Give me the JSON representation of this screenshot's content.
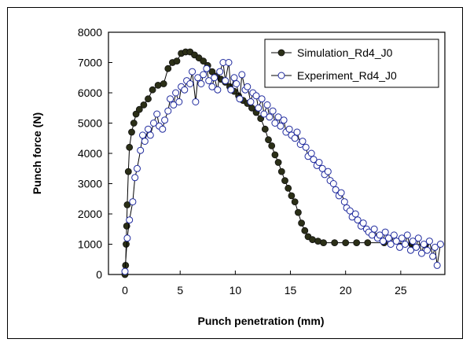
{
  "chart_data": {
    "type": "scatter",
    "title": "",
    "xlabel": "Punch penetration (mm)",
    "ylabel": "Punch force (N)",
    "xlim": [
      -1.5,
      29
    ],
    "ylim": [
      0,
      8000
    ],
    "xticks": [
      0,
      5,
      10,
      15,
      20,
      25
    ],
    "yticks": [
      0,
      1000,
      2000,
      3000,
      4000,
      5000,
      6000,
      7000,
      8000
    ],
    "grid": false,
    "legend_position": "top-right",
    "series": [
      {
        "name": "Simulation_Rd4_J0",
        "marker": "filled-circle",
        "color": "#2b2f17",
        "line": true,
        "points": [
          [
            0.0,
            0
          ],
          [
            0.05,
            300
          ],
          [
            0.1,
            1000
          ],
          [
            0.15,
            1600
          ],
          [
            0.2,
            2300
          ],
          [
            0.3,
            3400
          ],
          [
            0.4,
            4200
          ],
          [
            0.6,
            4700
          ],
          [
            0.8,
            5000
          ],
          [
            1.0,
            5300
          ],
          [
            1.3,
            5450
          ],
          [
            1.7,
            5600
          ],
          [
            2.1,
            5800
          ],
          [
            2.5,
            6100
          ],
          [
            3.0,
            6250
          ],
          [
            3.5,
            6300
          ],
          [
            3.9,
            6800
          ],
          [
            4.3,
            7000
          ],
          [
            4.7,
            7050
          ],
          [
            5.1,
            7300
          ],
          [
            5.5,
            7350
          ],
          [
            5.9,
            7350
          ],
          [
            6.3,
            7250
          ],
          [
            6.7,
            7150
          ],
          [
            7.1,
            7050
          ],
          [
            7.5,
            6900
          ],
          [
            7.9,
            6700
          ],
          [
            8.3,
            6550
          ],
          [
            8.7,
            6450
          ],
          [
            9.1,
            6350
          ],
          [
            9.5,
            6200
          ],
          [
            9.9,
            6050
          ],
          [
            10.3,
            5900
          ],
          [
            10.7,
            5750
          ],
          [
            11.1,
            5650
          ],
          [
            11.5,
            5500
          ],
          [
            11.9,
            5350
          ],
          [
            12.3,
            5150
          ],
          [
            12.7,
            4800
          ],
          [
            13.0,
            4450
          ],
          [
            13.3,
            4250
          ],
          [
            13.6,
            3950
          ],
          [
            13.9,
            3700
          ],
          [
            14.2,
            3400
          ],
          [
            14.5,
            3100
          ],
          [
            14.8,
            2850
          ],
          [
            15.1,
            2600
          ],
          [
            15.4,
            2400
          ],
          [
            15.7,
            2050
          ],
          [
            16.0,
            1700
          ],
          [
            16.3,
            1450
          ],
          [
            16.6,
            1250
          ],
          [
            17.0,
            1150
          ],
          [
            17.5,
            1100
          ],
          [
            18.0,
            1050
          ],
          [
            19.0,
            1050
          ],
          [
            20.0,
            1050
          ],
          [
            21.0,
            1050
          ],
          [
            22.0,
            1050
          ],
          [
            23.5,
            1050
          ],
          [
            26.0,
            1000
          ],
          [
            27.2,
            980
          ]
        ]
      },
      {
        "name": "Experiment_Rd4_J0",
        "marker": "open-circle",
        "color": "#1f2a9e",
        "line": true,
        "points": [
          [
            0.0,
            100
          ],
          [
            0.2,
            1200
          ],
          [
            0.4,
            1800
          ],
          [
            0.7,
            2400
          ],
          [
            0.9,
            3200
          ],
          [
            1.1,
            3500
          ],
          [
            1.4,
            4100
          ],
          [
            1.6,
            4600
          ],
          [
            1.8,
            4400
          ],
          [
            2.1,
            4800
          ],
          [
            2.3,
            4600
          ],
          [
            2.6,
            5000
          ],
          [
            2.9,
            5300
          ],
          [
            3.1,
            4900
          ],
          [
            3.4,
            4800
          ],
          [
            3.6,
            5100
          ],
          [
            3.9,
            5400
          ],
          [
            4.1,
            5800
          ],
          [
            4.4,
            5600
          ],
          [
            4.6,
            6000
          ],
          [
            4.9,
            5700
          ],
          [
            5.1,
            6200
          ],
          [
            5.4,
            6100
          ],
          [
            5.6,
            6400
          ],
          [
            5.9,
            6300
          ],
          [
            6.1,
            6700
          ],
          [
            6.4,
            5700
          ],
          [
            6.6,
            6500
          ],
          [
            6.9,
            6300
          ],
          [
            7.1,
            6600
          ],
          [
            7.4,
            6800
          ],
          [
            7.6,
            6400
          ],
          [
            7.9,
            6200
          ],
          [
            8.1,
            6500
          ],
          [
            8.4,
            6100
          ],
          [
            8.6,
            6700
          ],
          [
            8.9,
            7000
          ],
          [
            9.1,
            6400
          ],
          [
            9.4,
            7000
          ],
          [
            9.6,
            6100
          ],
          [
            9.9,
            6500
          ],
          [
            10.1,
            6300
          ],
          [
            10.4,
            5800
          ],
          [
            10.6,
            6600
          ],
          [
            10.9,
            6100
          ],
          [
            11.1,
            6200
          ],
          [
            11.4,
            5700
          ],
          [
            11.6,
            6000
          ],
          [
            11.9,
            5900
          ],
          [
            12.1,
            5500
          ],
          [
            12.4,
            5800
          ],
          [
            12.6,
            5300
          ],
          [
            12.9,
            5600
          ],
          [
            13.1,
            5200
          ],
          [
            13.4,
            5400
          ],
          [
            13.6,
            5000
          ],
          [
            13.9,
            5200
          ],
          [
            14.1,
            4900
          ],
          [
            14.4,
            5100
          ],
          [
            14.6,
            4700
          ],
          [
            14.9,
            4800
          ],
          [
            15.1,
            4600
          ],
          [
            15.4,
            4500
          ],
          [
            15.6,
            4700
          ],
          [
            15.9,
            4300
          ],
          [
            16.1,
            4400
          ],
          [
            16.4,
            4200
          ],
          [
            16.6,
            3900
          ],
          [
            16.9,
            4000
          ],
          [
            17.1,
            3800
          ],
          [
            17.4,
            3600
          ],
          [
            17.6,
            3700
          ],
          [
            17.9,
            3500
          ],
          [
            18.1,
            3300
          ],
          [
            18.4,
            3400
          ],
          [
            18.6,
            3100
          ],
          [
            18.9,
            3000
          ],
          [
            19.1,
            2800
          ],
          [
            19.4,
            2600
          ],
          [
            19.6,
            2700
          ],
          [
            19.9,
            2400
          ],
          [
            20.1,
            2200
          ],
          [
            20.4,
            2100
          ],
          [
            20.6,
            1900
          ],
          [
            20.9,
            2000
          ],
          [
            21.1,
            1800
          ],
          [
            21.4,
            1600
          ],
          [
            21.6,
            1700
          ],
          [
            21.9,
            1500
          ],
          [
            22.1,
            1400
          ],
          [
            22.4,
            1300
          ],
          [
            22.6,
            1500
          ],
          [
            22.9,
            1200
          ],
          [
            23.1,
            1300
          ],
          [
            23.4,
            1100
          ],
          [
            23.6,
            1400
          ],
          [
            23.9,
            1200
          ],
          [
            24.1,
            1000
          ],
          [
            24.4,
            1300
          ],
          [
            24.6,
            1100
          ],
          [
            24.9,
            900
          ],
          [
            25.1,
            1200
          ],
          [
            25.4,
            1000
          ],
          [
            25.6,
            1300
          ],
          [
            25.9,
            800
          ],
          [
            26.1,
            1100
          ],
          [
            26.4,
            900
          ],
          [
            26.6,
            1200
          ],
          [
            26.9,
            700
          ],
          [
            27.1,
            1000
          ],
          [
            27.4,
            800
          ],
          [
            27.6,
            1100
          ],
          [
            27.9,
            600
          ],
          [
            28.1,
            900
          ],
          [
            28.3,
            300
          ],
          [
            28.6,
            1000
          ]
        ]
      }
    ]
  }
}
